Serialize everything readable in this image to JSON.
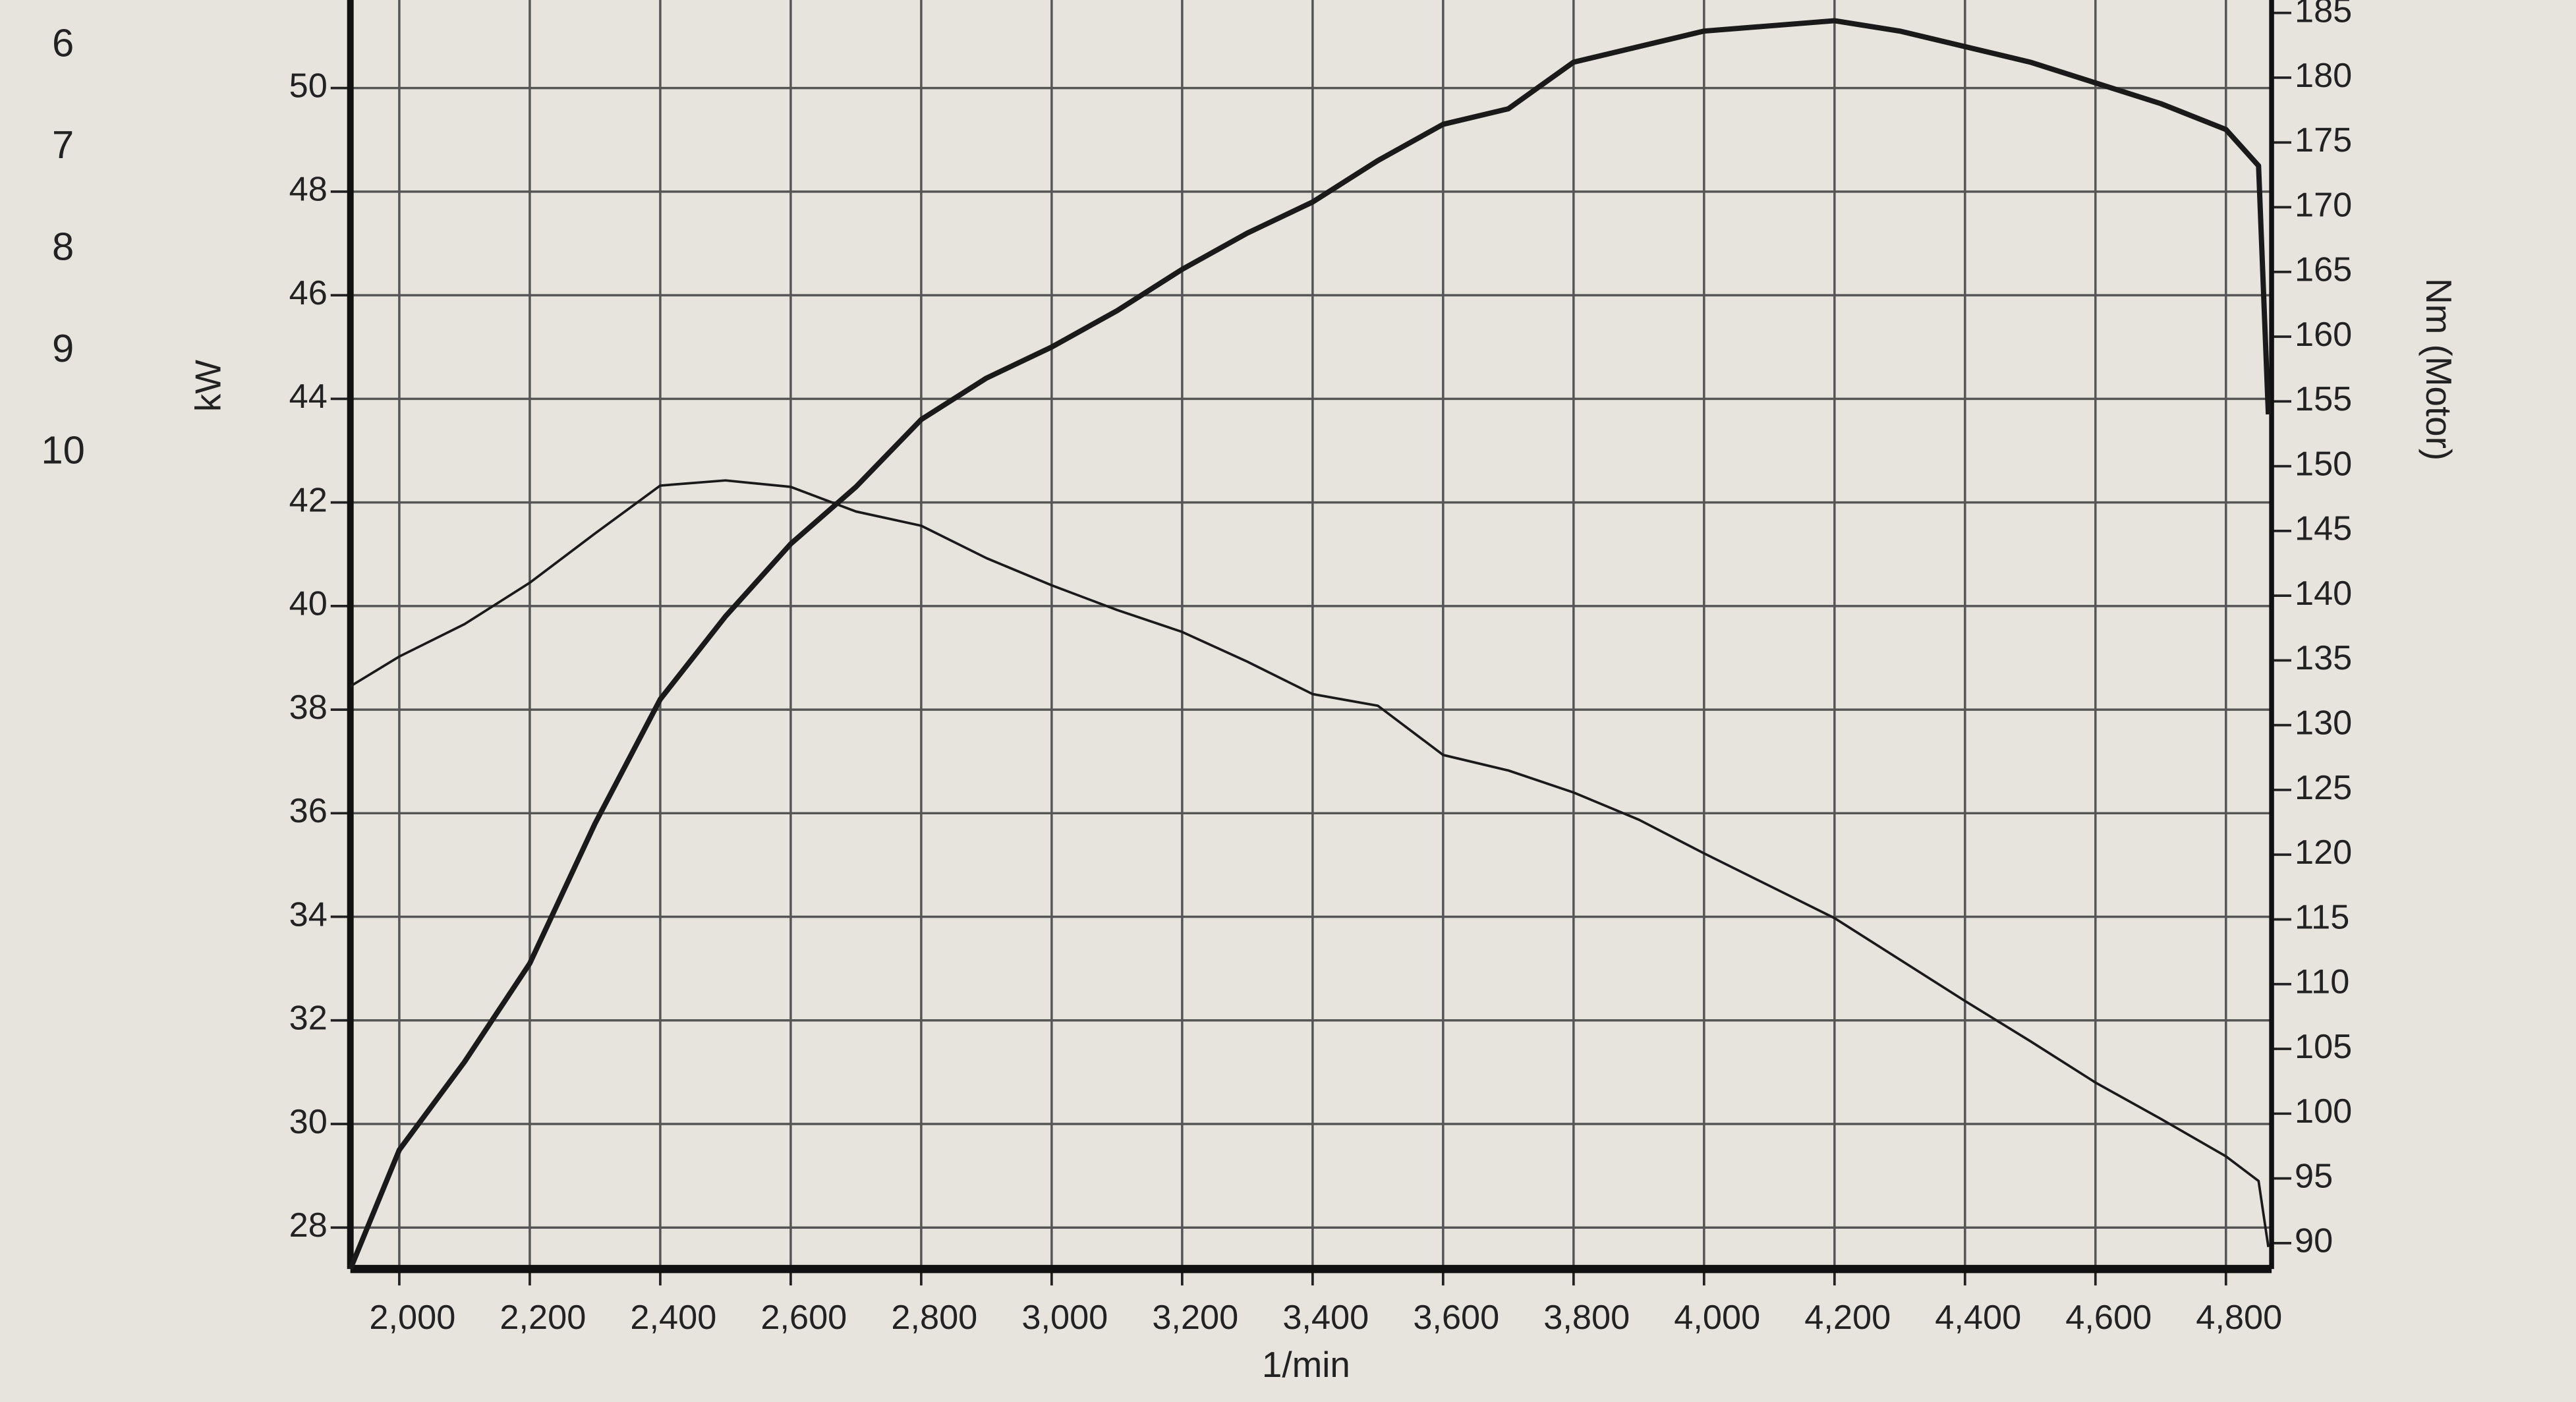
{
  "chart_data": {
    "type": "line",
    "annotations": [
      "6",
      "7",
      "8",
      "9",
      "10"
    ],
    "ylabel": "kW",
    "y2label": "Nm (Motor)",
    "xlabel": "1/min",
    "x": [
      1925,
      2000,
      2100,
      2200,
      2300,
      2400,
      2500,
      2600,
      2700,
      2800,
      2900,
      3000,
      3100,
      3200,
      3300,
      3400,
      3500,
      3600,
      3700,
      3800,
      3900,
      4000,
      4100,
      4200,
      4300,
      4400,
      4500,
      4600,
      4700,
      4800,
      4850,
      4865
    ],
    "xlim": [
      1925,
      4870
    ],
    "xticks": [
      {
        "value": 2000,
        "label": "2,000"
      },
      {
        "value": 2200,
        "label": "2,200"
      },
      {
        "value": 2400,
        "label": "2,400"
      },
      {
        "value": 2600,
        "label": "2,600"
      },
      {
        "value": 2800,
        "label": "2,800"
      },
      {
        "value": 3000,
        "label": "3,000"
      },
      {
        "value": 3200,
        "label": "3,200"
      },
      {
        "value": 3400,
        "label": "3,400"
      },
      {
        "value": 3600,
        "label": "3,600"
      },
      {
        "value": 3800,
        "label": "3,800"
      },
      {
        "value": 4000,
        "label": "4,000"
      },
      {
        "value": 4200,
        "label": "4,200"
      },
      {
        "value": 4400,
        "label": "4,400"
      },
      {
        "value": 4600,
        "label": "4,600"
      },
      {
        "value": 4800,
        "label": "4,800"
      }
    ],
    "ylim": [
      27.2,
      51.7
    ],
    "yticks": [
      28,
      30,
      32,
      34,
      36,
      38,
      40,
      42,
      44,
      46,
      48,
      50
    ],
    "y2lim": [
      88,
      186
    ],
    "y2ticks": [
      90,
      95,
      100,
      105,
      110,
      115,
      120,
      125,
      130,
      135,
      140,
      145,
      150,
      155,
      160,
      165,
      170,
      175,
      180,
      185
    ],
    "grid": true,
    "series": [
      {
        "color": "#1a1a1a",
        "width": 3.2,
        "values": [
          27.2,
          29.5,
          31.2,
          33.1,
          35.8,
          38.2,
          39.8,
          41.2,
          42.3,
          43.6,
          44.4,
          45.0,
          45.7,
          46.5,
          47.2,
          47.8,
          48.6,
          49.3,
          49.6,
          50.5,
          50.8,
          51.1,
          51.2,
          51.3,
          51.1,
          50.8,
          50.5,
          50.1,
          49.7,
          49.2,
          48.5,
          43.7
        ]
      },
      {
        "color": "#1a1a1a",
        "width": 1.5,
        "axis": "y2",
        "values": [
          133.0,
          135.3,
          137.8,
          141.0,
          144.8,
          148.5,
          148.9,
          148.4,
          146.5,
          145.4,
          142.9,
          140.8,
          138.9,
          137.2,
          134.9,
          132.4,
          131.5,
          127.7,
          126.5,
          124.8,
          122.7,
          120.1,
          117.6,
          115.1,
          111.9,
          108.7,
          105.6,
          102.4,
          99.6,
          96.7,
          94.8,
          89.7
        ]
      }
    ]
  }
}
